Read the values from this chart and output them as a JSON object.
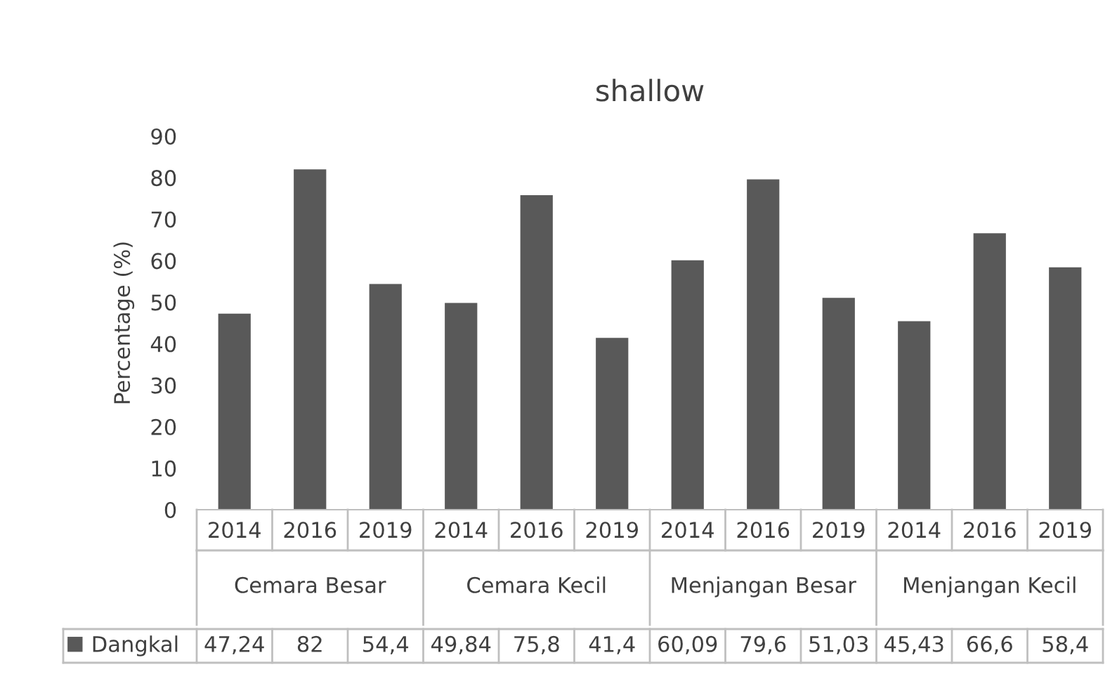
{
  "chart_data": {
    "type": "bar",
    "title": "shallow",
    "ylabel": "Percentage (%)",
    "categories": [
      "2014",
      "2016",
      "2019",
      "2014",
      "2016",
      "2019",
      "2014",
      "2016",
      "2019",
      "2014",
      "2016",
      "2019"
    ],
    "series": [
      {
        "name": "Dangkal",
        "color": "#595959",
        "values": [
          47.24,
          82,
          54.4,
          49.84,
          75.8,
          41.4,
          60.09,
          79.6,
          51.03,
          45.43,
          66.6,
          58.4
        ],
        "value_labels": [
          "47,24",
          "82",
          "54,4",
          "49,84",
          "75,8",
          "41,4",
          "60,09",
          "79,6",
          "51,03",
          "45,43",
          "66,6",
          "58,4"
        ]
      }
    ],
    "annotations": [
      "Cemara Besar",
      "Cemara Kecil",
      "Menjangan Besar",
      "Menjangan Kecil"
    ],
    "ylim": [
      0,
      90
    ],
    "yticks": [
      0,
      10,
      20,
      30,
      40,
      50,
      60,
      70,
      80,
      90
    ],
    "grid": false,
    "legend": "bottom"
  }
}
